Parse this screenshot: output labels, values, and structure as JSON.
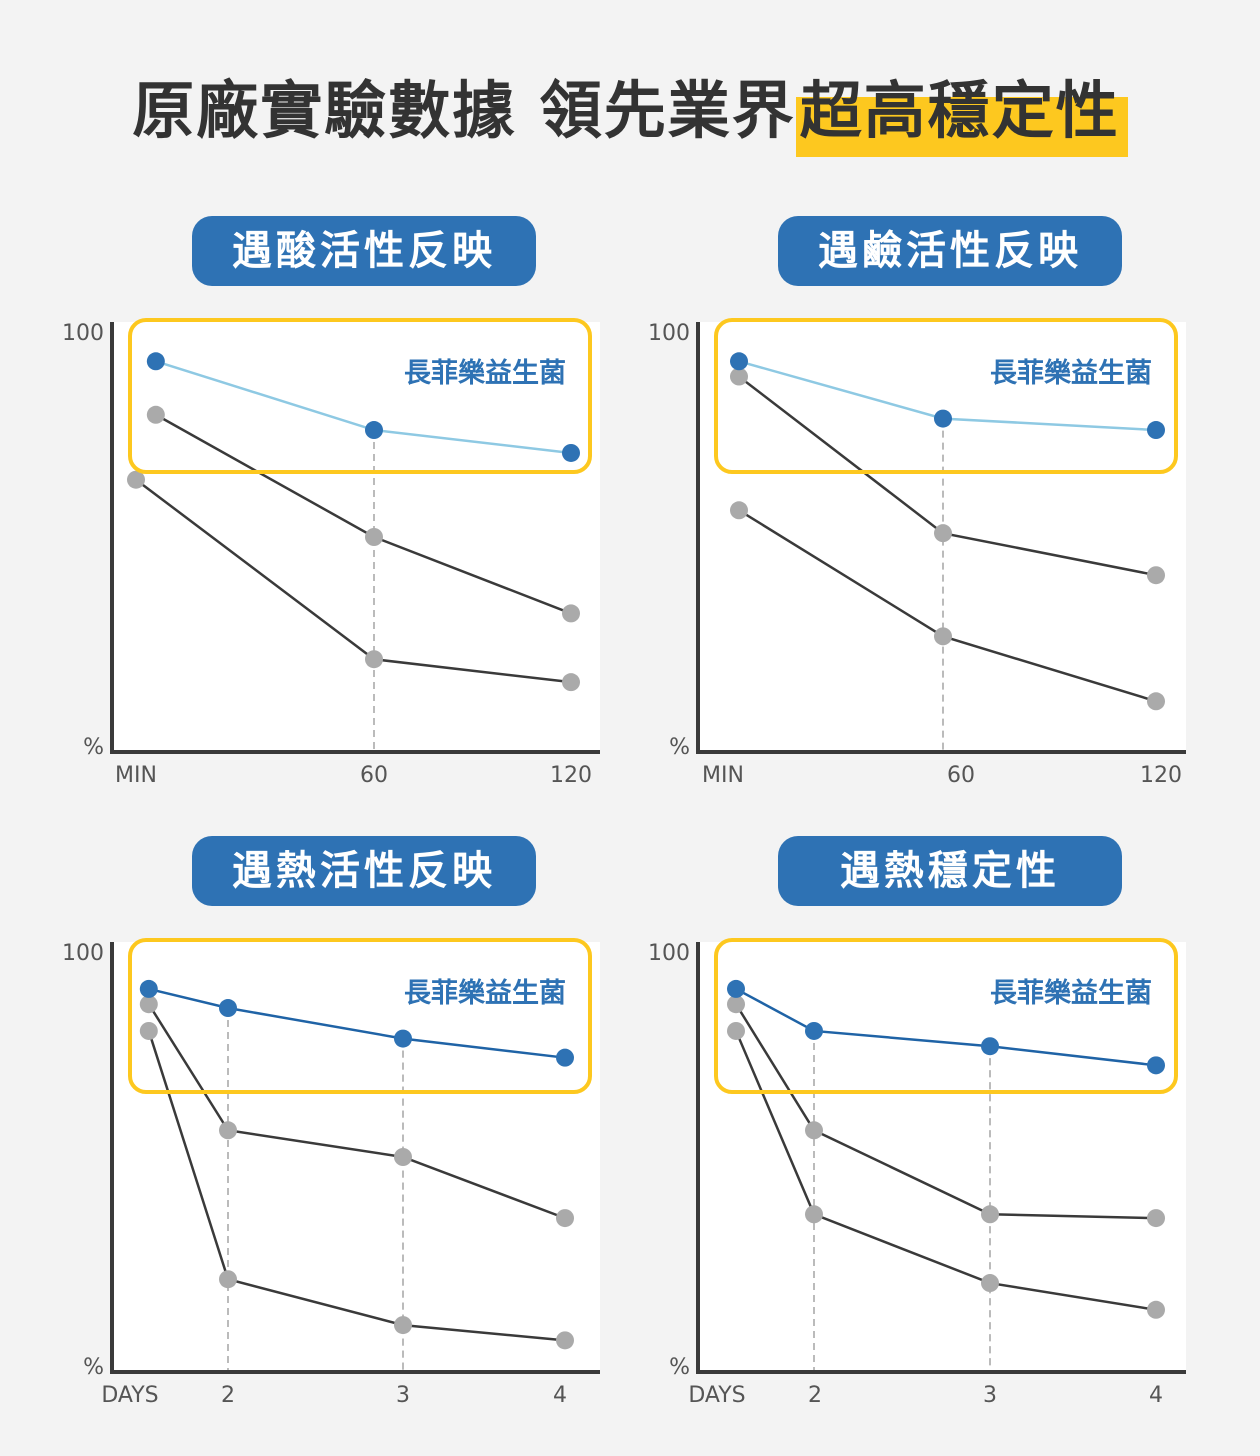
{
  "headline": {
    "prefix": "原廠實驗數據 領先業界",
    "highlight": "超高穩定性"
  },
  "colors": {
    "accent_blue": "#2e72b4",
    "highlight_yellow": "#fdc81f",
    "light_blue_line": "#8ec9e3",
    "gray_dot": "#aaaaaa",
    "dark_line": "#3a3a3a"
  },
  "chart_data": [
    {
      "type": "line",
      "title": "遇酸活性反映",
      "x_ticks": [
        "MIN",
        "60",
        "120"
      ],
      "y_top_label": "100",
      "y_bottom_label": "%",
      "ylim": [
        0,
        100
      ],
      "legend_label": "長菲樂益生菌",
      "highlight_line_color": "#8ec9e3",
      "series": [
        {
          "name": "長菲樂益生菌",
          "highlight": true,
          "x": [
            5,
            60,
            120
          ],
          "values": [
            96,
            78,
            72
          ]
        },
        {
          "x": [
            5,
            60,
            120
          ],
          "values": [
            82,
            50,
            30
          ]
        },
        {
          "x": [
            0,
            60,
            120
          ],
          "values": [
            65,
            18,
            12
          ]
        }
      ]
    },
    {
      "type": "line",
      "title": "遇鹼活性反映",
      "x_ticks": [
        "MIN",
        "60",
        "120"
      ],
      "y_top_label": "100",
      "y_bottom_label": "%",
      "ylim": [
        0,
        100
      ],
      "legend_label": "長菲樂益生菌",
      "highlight_line_color": "#8ec9e3",
      "series": [
        {
          "name": "長菲樂益生菌",
          "highlight": true,
          "x": [
            5,
            60,
            120
          ],
          "values": [
            96,
            81,
            78
          ]
        },
        {
          "x": [
            5,
            60,
            120
          ],
          "values": [
            92,
            51,
            40
          ]
        },
        {
          "x": [
            5,
            60,
            120
          ],
          "values": [
            57,
            24,
            7
          ]
        }
      ]
    },
    {
      "type": "line",
      "title": "遇熱活性反映",
      "x_ticks": [
        "DAYS",
        "2",
        "3",
        "4"
      ],
      "y_top_label": "100",
      "y_bottom_label": "%",
      "ylim": [
        0,
        100
      ],
      "legend_label": "長菲樂益生菌",
      "highlight_line_color": "#1f63a6",
      "series": [
        {
          "name": "長菲樂益生菌",
          "highlight": true,
          "x": [
            1.1,
            2,
            3,
            4
          ],
          "values": [
            94,
            89,
            81,
            76
          ]
        },
        {
          "x": [
            1.1,
            2,
            3,
            4
          ],
          "values": [
            90,
            57,
            50,
            34
          ]
        },
        {
          "x": [
            1.1,
            2,
            3,
            4
          ],
          "values": [
            83,
            18,
            6,
            2
          ]
        }
      ]
    },
    {
      "type": "line",
      "title": "遇熱穩定性",
      "x_ticks": [
        "DAYS",
        "2",
        "3",
        "4"
      ],
      "y_top_label": "100",
      "y_bottom_label": "%",
      "ylim": [
        0,
        100
      ],
      "legend_label": "長菲樂益生菌",
      "highlight_line_color": "#1f63a6",
      "series": [
        {
          "name": "長菲樂益生菌",
          "highlight": true,
          "x": [
            1,
            2,
            3,
            4
          ],
          "values": [
            94,
            83,
            79,
            74
          ]
        },
        {
          "x": [
            1,
            2,
            3,
            4
          ],
          "values": [
            90,
            57,
            35,
            34
          ]
        },
        {
          "x": [
            1,
            2,
            3,
            4
          ],
          "values": [
            83,
            35,
            17,
            10
          ]
        }
      ]
    }
  ]
}
